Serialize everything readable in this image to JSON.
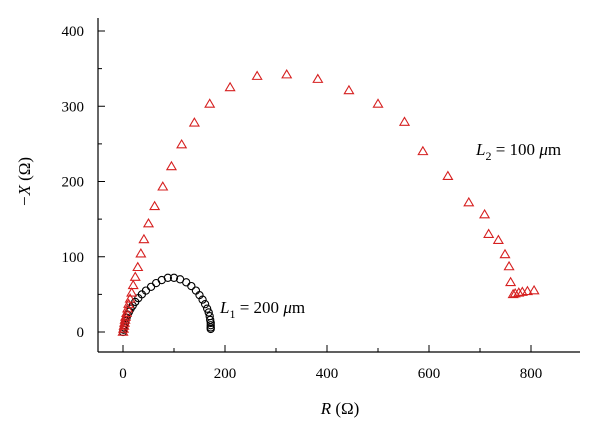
{
  "chart_data": {
    "type": "scatter",
    "xlabel": {
      "var": "R",
      "unit": " (Ω)"
    },
    "ylabel": {
      "var": "−X",
      "unit": " (Ω)"
    },
    "xlim": [
      -50,
      900
    ],
    "ylim": [
      -15,
      420
    ],
    "xticks": [
      0,
      200,
      400,
      600,
      800
    ],
    "yticks": [
      0,
      100,
      200,
      300,
      400
    ],
    "grid": false,
    "series": [
      {
        "name": "L1 = 200 μm",
        "marker": "circle",
        "color": "#000000",
        "x": [
          0,
          1,
          2,
          3,
          4,
          5,
          7,
          9,
          12,
          15,
          19,
          24,
          30,
          37,
          45,
          55,
          65,
          76,
          88,
          100,
          112,
          124,
          134,
          143,
          150,
          156,
          161,
          165,
          168,
          170,
          171,
          172,
          172,
          172,
          172
        ],
        "y": [
          0,
          3,
          6,
          9,
          12,
          15,
          19,
          23,
          27,
          31,
          35,
          40,
          45,
          50,
          55,
          60,
          65,
          69,
          72,
          72,
          70,
          66,
          61,
          55,
          49,
          43,
          37,
          31,
          26,
          21,
          16,
          12,
          9,
          6,
          4
        ]
      },
      {
        "name": "L2 = 100 μm",
        "marker": "triangle",
        "color": "#d62020",
        "x": [
          0,
          1,
          2,
          3,
          4,
          5,
          7,
          9,
          11,
          14,
          17,
          20,
          24,
          29,
          35,
          41,
          50,
          62,
          78,
          95,
          115,
          140,
          170,
          210,
          263,
          321,
          382,
          443,
          500,
          552,
          588,
          637,
          678,
          709,
          717,
          736,
          749,
          757,
          760,
          765,
          769,
          776,
          783,
          793,
          806
        ],
        "y": [
          0,
          4,
          8,
          12,
          16,
          20,
          25,
          31,
          37,
          44,
          52,
          62,
          73,
          86,
          104,
          123,
          144,
          167,
          193,
          220,
          249,
          278,
          303,
          325,
          340,
          342,
          336,
          321,
          303,
          279,
          240,
          207,
          172,
          156,
          130,
          122,
          103,
          87,
          66,
          50,
          51,
          52,
          53,
          54,
          55
        ]
      }
    ],
    "annotations": [
      {
        "var": "L",
        "sub": "1",
        "rest": " = 200 ",
        "unit_it": "μ",
        "unit": "m"
      },
      {
        "var": "L",
        "sub": "2",
        "rest": " = 100 ",
        "unit_it": "μ",
        "unit": "m"
      }
    ]
  }
}
